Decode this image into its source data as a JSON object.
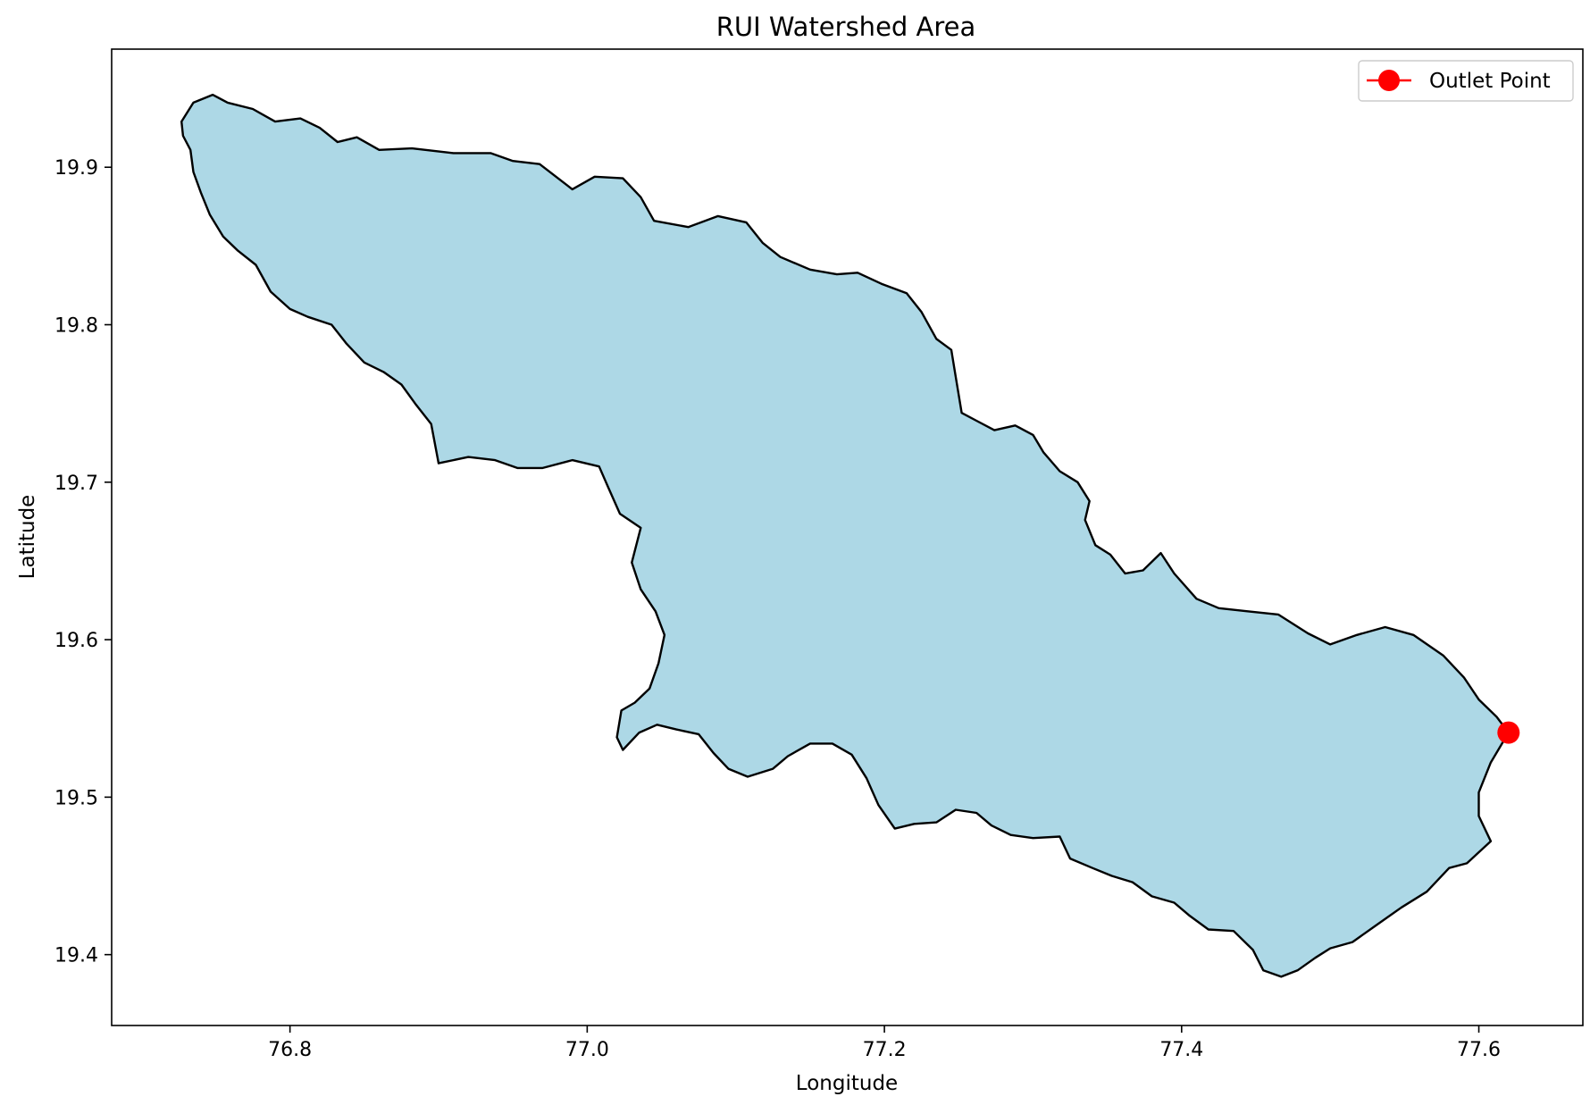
{
  "chart_data": {
    "type": "map",
    "title": "RUI Watershed Area",
    "xlabel": "Longitude",
    "ylabel": "Latitude",
    "xlim": [
      76.68,
      77.67
    ],
    "ylim": [
      19.355,
      19.975
    ],
    "xticks": [
      {
        "value": 76.8,
        "label": "76.8"
      },
      {
        "value": 77.0,
        "label": "77.0"
      },
      {
        "value": 77.2,
        "label": "77.2"
      },
      {
        "value": 77.4,
        "label": "77.4"
      },
      {
        "value": 77.6,
        "label": "77.6"
      }
    ],
    "yticks": [
      {
        "value": 19.4,
        "label": "19.4"
      },
      {
        "value": 19.5,
        "label": "19.5"
      },
      {
        "value": 19.6,
        "label": "19.6"
      },
      {
        "value": 19.7,
        "label": "19.7"
      },
      {
        "value": 19.8,
        "label": "19.8"
      },
      {
        "value": 19.9,
        "label": "19.9"
      }
    ],
    "grid": false,
    "legend": {
      "position": "top-right",
      "entries": [
        {
          "label": "Outlet Point",
          "color": "#ff0000",
          "marker": "circle"
        }
      ]
    },
    "watershed": {
      "fill_color": "#add8e6",
      "edge_color": "#000000",
      "boundary": [
        [
          76.727,
          19.929
        ],
        [
          76.735,
          19.941
        ],
        [
          76.748,
          19.946
        ],
        [
          76.758,
          19.941
        ],
        [
          76.775,
          19.937
        ],
        [
          76.79,
          19.929
        ],
        [
          76.807,
          19.931
        ],
        [
          76.82,
          19.925
        ],
        [
          76.832,
          19.916
        ],
        [
          76.845,
          19.919
        ],
        [
          76.86,
          19.911
        ],
        [
          76.882,
          19.912
        ],
        [
          76.91,
          19.909
        ],
        [
          76.935,
          19.909
        ],
        [
          76.95,
          19.904
        ],
        [
          76.968,
          19.902
        ],
        [
          76.99,
          19.886
        ],
        [
          77.005,
          19.894
        ],
        [
          77.024,
          19.893
        ],
        [
          77.036,
          19.881
        ],
        [
          77.045,
          19.866
        ],
        [
          77.068,
          19.862
        ],
        [
          77.088,
          19.869
        ],
        [
          77.107,
          19.865
        ],
        [
          77.118,
          19.852
        ],
        [
          77.13,
          19.843
        ],
        [
          77.15,
          19.835
        ],
        [
          77.168,
          19.832
        ],
        [
          77.182,
          19.833
        ],
        [
          77.198,
          19.826
        ],
        [
          77.215,
          19.82
        ],
        [
          77.225,
          19.808
        ],
        [
          77.235,
          19.791
        ],
        [
          77.245,
          19.784
        ],
        [
          77.248,
          19.767
        ],
        [
          77.252,
          19.744
        ],
        [
          77.262,
          19.739
        ],
        [
          77.274,
          19.733
        ],
        [
          77.288,
          19.736
        ],
        [
          77.3,
          19.73
        ],
        [
          77.307,
          19.719
        ],
        [
          77.318,
          19.707
        ],
        [
          77.33,
          19.7
        ],
        [
          77.338,
          19.688
        ],
        [
          77.335,
          19.676
        ],
        [
          77.342,
          19.66
        ],
        [
          77.352,
          19.654
        ],
        [
          77.362,
          19.642
        ],
        [
          77.374,
          19.644
        ],
        [
          77.386,
          19.655
        ],
        [
          77.395,
          19.642
        ],
        [
          77.41,
          19.626
        ],
        [
          77.425,
          19.62
        ],
        [
          77.445,
          19.618
        ],
        [
          77.465,
          19.616
        ],
        [
          77.485,
          19.604
        ],
        [
          77.5,
          19.597
        ],
        [
          77.518,
          19.603
        ],
        [
          77.537,
          19.608
        ],
        [
          77.556,
          19.603
        ],
        [
          77.576,
          19.59
        ],
        [
          77.59,
          19.576
        ],
        [
          77.6,
          19.562
        ],
        [
          77.612,
          19.551
        ],
        [
          77.62,
          19.541
        ],
        [
          77.608,
          19.522
        ],
        [
          77.6,
          19.503
        ],
        [
          77.6,
          19.488
        ],
        [
          77.608,
          19.472
        ],
        [
          77.592,
          19.458
        ],
        [
          77.58,
          19.455
        ],
        [
          77.565,
          19.44
        ],
        [
          77.548,
          19.43
        ],
        [
          77.53,
          19.418
        ],
        [
          77.515,
          19.408
        ],
        [
          77.5,
          19.404
        ],
        [
          77.49,
          19.398
        ],
        [
          77.478,
          19.39
        ],
        [
          77.467,
          19.386
        ],
        [
          77.455,
          19.39
        ],
        [
          77.448,
          19.403
        ],
        [
          77.435,
          19.415
        ],
        [
          77.418,
          19.416
        ],
        [
          77.405,
          19.425
        ],
        [
          77.395,
          19.433
        ],
        [
          77.38,
          19.437
        ],
        [
          77.367,
          19.446
        ],
        [
          77.353,
          19.45
        ],
        [
          77.34,
          19.455
        ],
        [
          77.325,
          19.461
        ],
        [
          77.318,
          19.475
        ],
        [
          77.3,
          19.474
        ],
        [
          77.285,
          19.476
        ],
        [
          77.272,
          19.482
        ],
        [
          77.262,
          19.49
        ],
        [
          77.248,
          19.492
        ],
        [
          77.235,
          19.484
        ],
        [
          77.22,
          19.483
        ],
        [
          77.207,
          19.48
        ],
        [
          77.196,
          19.495
        ],
        [
          77.188,
          19.512
        ],
        [
          77.178,
          19.527
        ],
        [
          77.165,
          19.534
        ],
        [
          77.15,
          19.534
        ],
        [
          77.135,
          19.526
        ],
        [
          77.125,
          19.518
        ],
        [
          77.108,
          19.513
        ],
        [
          77.095,
          19.518
        ],
        [
          77.085,
          19.528
        ],
        [
          77.075,
          19.54
        ],
        [
          77.06,
          19.543
        ],
        [
          77.047,
          19.546
        ],
        [
          77.035,
          19.541
        ],
        [
          77.024,
          19.53
        ],
        [
          77.02,
          19.538
        ],
        [
          77.023,
          19.555
        ],
        [
          77.032,
          19.56
        ],
        [
          77.042,
          19.569
        ],
        [
          77.048,
          19.585
        ],
        [
          77.052,
          19.603
        ],
        [
          77.046,
          19.618
        ],
        [
          77.036,
          19.632
        ],
        [
          77.03,
          19.649
        ],
        [
          77.036,
          19.671
        ],
        [
          77.022,
          19.68
        ],
        [
          77.014,
          19.697
        ],
        [
          77.008,
          19.71
        ],
        [
          76.99,
          19.714
        ],
        [
          76.97,
          19.709
        ],
        [
          76.953,
          19.709
        ],
        [
          76.938,
          19.714
        ],
        [
          76.92,
          19.716
        ],
        [
          76.9,
          19.712
        ],
        [
          76.895,
          19.737
        ],
        [
          76.885,
          19.749
        ],
        [
          76.875,
          19.762
        ],
        [
          76.863,
          19.77
        ],
        [
          76.85,
          19.776
        ],
        [
          76.838,
          19.788
        ],
        [
          76.828,
          19.8
        ],
        [
          76.812,
          19.805
        ],
        [
          76.8,
          19.81
        ],
        [
          76.787,
          19.821
        ],
        [
          76.777,
          19.838
        ],
        [
          76.765,
          19.847
        ],
        [
          76.755,
          19.856
        ],
        [
          76.746,
          19.87
        ],
        [
          76.74,
          19.884
        ],
        [
          76.735,
          19.897
        ],
        [
          76.733,
          19.911
        ],
        [
          76.728,
          19.92
        ]
      ]
    },
    "outlet_point": {
      "label": "Outlet Point",
      "lon": 77.62,
      "lat": 19.541,
      "color": "#ff0000"
    }
  }
}
